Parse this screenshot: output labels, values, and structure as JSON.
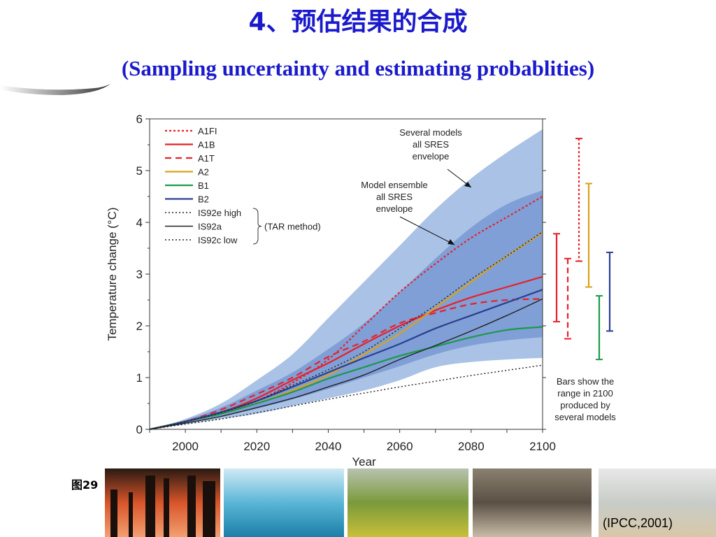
{
  "slide": {
    "title_line1": "4、预估结果的合成",
    "title_line2": "(Sampling uncertainty and estimating probablities)",
    "figure_label": "图29",
    "credit": "(IPCC,2001)"
  },
  "chart_data": {
    "type": "line",
    "xlabel": "Year",
    "ylabel": "Temperature change (°C)",
    "xlim": [
      1990,
      2100
    ],
    "ylim": [
      0,
      6
    ],
    "x_ticks": [
      "2000",
      "2020",
      "2040",
      "2060",
      "2080",
      "2100"
    ],
    "y_ticks": [
      "0",
      "1",
      "2",
      "3",
      "4",
      "5",
      "6"
    ],
    "legend_group_label": "(TAR method)",
    "annotations": {
      "outer_envelope": [
        "Several models",
        "all SRES",
        "envelope"
      ],
      "inner_envelope": [
        "Model ensemble",
        "all SRES",
        "envelope"
      ],
      "bars_note": [
        "Bars show the",
        "range in 2100",
        "produced by",
        "several models"
      ]
    },
    "outer_envelope": {
      "color": "#a9c2e6",
      "x": [
        1990,
        2000,
        2010,
        2020,
        2030,
        2040,
        2050,
        2060,
        2070,
        2080,
        2090,
        2100
      ],
      "upper": [
        0,
        0.2,
        0.5,
        0.95,
        1.45,
        2.15,
        2.85,
        3.55,
        4.25,
        4.85,
        5.35,
        5.8
      ],
      "lower": [
        0,
        0.1,
        0.2,
        0.3,
        0.45,
        0.6,
        0.75,
        0.95,
        1.2,
        1.3,
        1.35,
        1.38
      ]
    },
    "inner_envelope": {
      "color": "#7f9fd6",
      "x": [
        1990,
        2000,
        2010,
        2020,
        2030,
        2040,
        2050,
        2060,
        2070,
        2080,
        2090,
        2100
      ],
      "upper": [
        0,
        0.18,
        0.42,
        0.75,
        1.1,
        1.55,
        2.05,
        2.65,
        3.3,
        3.9,
        4.35,
        4.62
      ],
      "lower": [
        0,
        0.12,
        0.25,
        0.4,
        0.58,
        0.78,
        1.0,
        1.22,
        1.45,
        1.62,
        1.72,
        1.78
      ]
    },
    "series": [
      {
        "name": "A1FI",
        "color": "#e8202a",
        "dash": "3,3",
        "x": [
          1990,
          2000,
          2010,
          2020,
          2030,
          2040,
          2050,
          2060,
          2070,
          2080,
          2090,
          2100
        ],
        "y": [
          0,
          0.15,
          0.33,
          0.55,
          0.9,
          1.35,
          2.0,
          2.65,
          3.2,
          3.7,
          4.1,
          4.5
        ]
      },
      {
        "name": "A1B",
        "color": "#e8202a",
        "dash": "",
        "x": [
          1990,
          2000,
          2010,
          2020,
          2030,
          2040,
          2050,
          2060,
          2070,
          2080,
          2090,
          2100
        ],
        "y": [
          0,
          0.15,
          0.33,
          0.6,
          0.95,
          1.28,
          1.65,
          2.0,
          2.3,
          2.55,
          2.75,
          2.95
        ]
      },
      {
        "name": "A1T",
        "color": "#e8202a",
        "dash": "9,6",
        "x": [
          1990,
          2000,
          2010,
          2020,
          2030,
          2040,
          2050,
          2060,
          2070,
          2080,
          2090,
          2100
        ],
        "y": [
          0,
          0.15,
          0.38,
          0.68,
          1.0,
          1.4,
          1.7,
          2.05,
          2.25,
          2.42,
          2.5,
          2.52
        ]
      },
      {
        "name": "A2",
        "color": "#d9a21b",
        "dash": "",
        "x": [
          1990,
          2000,
          2010,
          2020,
          2030,
          2040,
          2050,
          2060,
          2070,
          2080,
          2090,
          2100
        ],
        "y": [
          0,
          0.15,
          0.3,
          0.5,
          0.75,
          1.05,
          1.45,
          1.85,
          2.35,
          2.85,
          3.35,
          3.8
        ]
      },
      {
        "name": "B1",
        "color": "#1a9a4a",
        "dash": "",
        "x": [
          1990,
          2000,
          2010,
          2020,
          2030,
          2040,
          2050,
          2060,
          2070,
          2080,
          2090,
          2100
        ],
        "y": [
          0,
          0.15,
          0.3,
          0.5,
          0.72,
          0.98,
          1.2,
          1.42,
          1.6,
          1.78,
          1.92,
          1.98
        ]
      },
      {
        "name": "B2",
        "color": "#2a3f8f",
        "dash": "",
        "x": [
          1990,
          2000,
          2010,
          2020,
          2030,
          2040,
          2050,
          2060,
          2070,
          2080,
          2090,
          2100
        ],
        "y": [
          0,
          0.15,
          0.33,
          0.55,
          0.82,
          1.1,
          1.38,
          1.65,
          1.95,
          2.2,
          2.45,
          2.7
        ]
      },
      {
        "name": "IS92e high",
        "color": "#222222",
        "dash": "2,3",
        "x": [
          1990,
          2000,
          2010,
          2020,
          2030,
          2040,
          2050,
          2060,
          2070,
          2080,
          2090,
          2100
        ],
        "y": [
          0,
          0.15,
          0.32,
          0.55,
          0.85,
          1.15,
          1.5,
          1.95,
          2.4,
          2.9,
          3.35,
          3.82
        ]
      },
      {
        "name": "IS92a",
        "color": "#222222",
        "dash": "",
        "x": [
          1990,
          2000,
          2010,
          2020,
          2030,
          2040,
          2050,
          2060,
          2070,
          2080,
          2090,
          2100
        ],
        "y": [
          0,
          0.12,
          0.25,
          0.42,
          0.6,
          0.82,
          1.05,
          1.35,
          1.62,
          1.9,
          2.2,
          2.52
        ]
      },
      {
        "name": "IS92c low",
        "color": "#222222",
        "dash": "2,3",
        "x": [
          1990,
          2000,
          2010,
          2020,
          2030,
          2040,
          2050,
          2060,
          2070,
          2080,
          2090,
          2100
        ],
        "y": [
          0,
          0.1,
          0.2,
          0.32,
          0.45,
          0.58,
          0.7,
          0.82,
          0.93,
          1.04,
          1.14,
          1.24
        ]
      }
    ],
    "range_bars_2100": [
      {
        "series": "A1B",
        "color": "#e8202a",
        "dash": "",
        "low": 2.08,
        "high": 3.78
      },
      {
        "series": "A1T",
        "color": "#e8202a",
        "dash": "8,5",
        "low": 1.75,
        "high": 3.3
      },
      {
        "series": "A1FI",
        "color": "#e8202a",
        "dash": "3,3",
        "low": 3.25,
        "high": 5.62
      },
      {
        "series": "A2",
        "color": "#d9a21b",
        "dash": "",
        "low": 2.75,
        "high": 4.75
      },
      {
        "series": "B1",
        "color": "#1a9a4a",
        "dash": "",
        "low": 1.35,
        "high": 2.58
      },
      {
        "series": "B2",
        "color": "#2a3f8f",
        "dash": "",
        "low": 1.9,
        "high": 3.42
      }
    ]
  },
  "photo_strip": [
    {
      "name": "industrial-smokestacks-photo",
      "colors": [
        "#2a1a12",
        "#d8552a",
        "#f3a070"
      ]
    },
    {
      "name": "glacier-iceberg-photo",
      "colors": [
        "#cfeaf5",
        "#5ab6d6",
        "#1c7fa8"
      ]
    },
    {
      "name": "crop-field-photo",
      "colors": [
        "#b8c2b0",
        "#7a9a3a",
        "#c8c03a"
      ]
    },
    {
      "name": "cracked-earth-photo",
      "colors": [
        "#8a8070",
        "#5a5044",
        "#c8bca8"
      ]
    },
    {
      "name": "coast-beach-photo",
      "colors": [
        "#e8e8e8",
        "#c8ccc8",
        "#d8c8a8"
      ]
    }
  ]
}
